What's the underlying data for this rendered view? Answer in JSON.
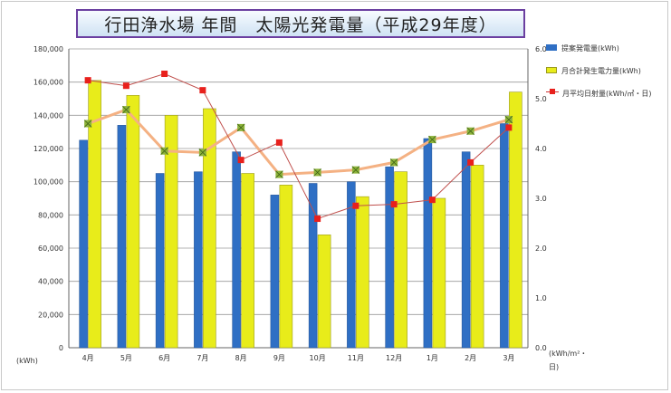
{
  "chart_data": {
    "type": "bar",
    "title": "行田浄水場 年間　太陽光発電量（平成29年度）",
    "categories": [
      "4月",
      "5月",
      "6月",
      "7月",
      "8月",
      "9月",
      "10月",
      "11月",
      "12月",
      "1月",
      "2月",
      "3月"
    ],
    "left_axis": {
      "unit": "(kWh)",
      "min": 0,
      "max": 180000,
      "step": 20000,
      "ticks": [
        "0",
        "20,000",
        "40,000",
        "60,000",
        "80,000",
        "100,000",
        "120,000",
        "140,000",
        "160,000",
        "180,000"
      ]
    },
    "right_axis": {
      "unit": "(kWh/m²・日)",
      "min": 0,
      "max": 6,
      "step": 1,
      "ticks": [
        "0.0",
        "1.0",
        "2.0",
        "3.0",
        "4.0",
        "5.0",
        "6.0"
      ]
    },
    "series": [
      {
        "name": "提案発電量(kWh)",
        "type": "bar",
        "axis": "left",
        "color": "#2f6fc4",
        "values": [
          125000,
          134000,
          105000,
          106000,
          118000,
          92000,
          99000,
          100000,
          109000,
          126000,
          118000,
          135000
        ]
      },
      {
        "name": "月合計発生電力量(kWh)",
        "type": "bar",
        "axis": "left",
        "color": "#e8ec1a",
        "values": [
          161000,
          152000,
          140000,
          144000,
          105000,
          98000,
          68000,
          91000,
          106000,
          90000,
          110000,
          154000
        ]
      },
      {
        "name": "",
        "type": "line",
        "axis": "right",
        "color": "#f4b183",
        "marker_color": "#8db33a",
        "values": [
          4.5,
          4.78,
          3.95,
          3.92,
          4.42,
          3.48,
          3.52,
          3.57,
          3.72,
          4.18,
          4.35,
          4.58
        ]
      },
      {
        "name": "月平均日射量(kWh/㎡・日)",
        "type": "line",
        "axis": "right",
        "color": "#c0504d",
        "marker_color": "#e8201c",
        "values": [
          5.37,
          5.26,
          5.5,
          5.17,
          3.77,
          4.12,
          2.59,
          2.85,
          2.88,
          2.97,
          3.72,
          4.42
        ]
      }
    ],
    "grid": true,
    "legend_position": "right"
  }
}
